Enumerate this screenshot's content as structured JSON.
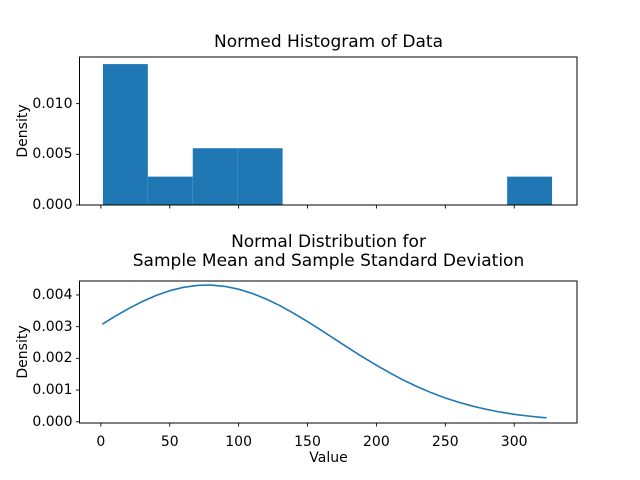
{
  "figure": {
    "background": "#ffffff",
    "accent_color": "#1f77b4",
    "text_color": "#000000"
  },
  "chart_data": [
    {
      "type": "bar",
      "subtype": "density-histogram",
      "title": "Normed Histogram of Data",
      "xlabel": "",
      "ylabel": "Density",
      "bar_color": "#1f77b4",
      "bin_edges": [
        1.5,
        34.1,
        66.7,
        99.3,
        131.9,
        164.5,
        197.1,
        229.7,
        262.3,
        294.9,
        327.5
      ],
      "densities": [
        0.0139,
        0.0028,
        0.0056,
        0.0056,
        0,
        0,
        0,
        0,
        0,
        0.0028
      ],
      "xlim": [
        -15.5,
        345.6
      ],
      "ylim": [
        0,
        0.0146
      ],
      "xticks": {
        "values": [
          0,
          50,
          100,
          150,
          200,
          250,
          300
        ],
        "labels": [
          "",
          "",
          "",
          "",
          "",
          "",
          ""
        ]
      },
      "yticks": {
        "values": [
          0,
          0.005,
          0.01
        ],
        "labels": [
          "0.000",
          "0.005",
          "0.010"
        ]
      },
      "grid": false,
      "legend": null
    },
    {
      "type": "line",
      "subtype": "normal-pdf",
      "title_lines": [
        "Normal Distribution for",
        "Sample Mean and Sample Standard Deviation"
      ],
      "xlabel": "Value",
      "ylabel": "Density",
      "line_color": "#1f77b4",
      "x": [
        1.5,
        10,
        20,
        30,
        40,
        50,
        60,
        70,
        77,
        80,
        90,
        100,
        110,
        120,
        130,
        140,
        150,
        160,
        170,
        180,
        190,
        200,
        210,
        220,
        230,
        240,
        250,
        260,
        270,
        280,
        290,
        300,
        310,
        320,
        323
      ],
      "y": [
        0.003091,
        0.003318,
        0.003567,
        0.003791,
        0.003981,
        0.004133,
        0.004241,
        0.004301,
        0.004313,
        0.004311,
        0.004271,
        0.004182,
        0.004047,
        0.003871,
        0.00366,
        0.00342,
        0.003159,
        0.002884,
        0.002602,
        0.00232,
        0.002045,
        0.001782,
        0.001534,
        0.001305,
        0.001098,
        0.000913,
        0.00075,
        0.000609,
        0.000489,
        0.000388,
        0.000304,
        0.000236,
        0.000181,
        0.000137,
        0.000126
      ],
      "xlim": [
        -15.5,
        345.6
      ],
      "ylim": [
        -4e-05,
        0.00444
      ],
      "xticks": {
        "values": [
          0,
          50,
          100,
          150,
          200,
          250,
          300
        ],
        "labels": [
          "0",
          "50",
          "100",
          "150",
          "200",
          "250",
          "300"
        ]
      },
      "yticks": {
        "values": [
          0,
          0.001,
          0.002,
          0.003,
          0.004
        ],
        "labels": [
          "0.000",
          "0.001",
          "0.002",
          "0.003",
          "0.004"
        ]
      },
      "grid": false,
      "legend": null
    }
  ]
}
